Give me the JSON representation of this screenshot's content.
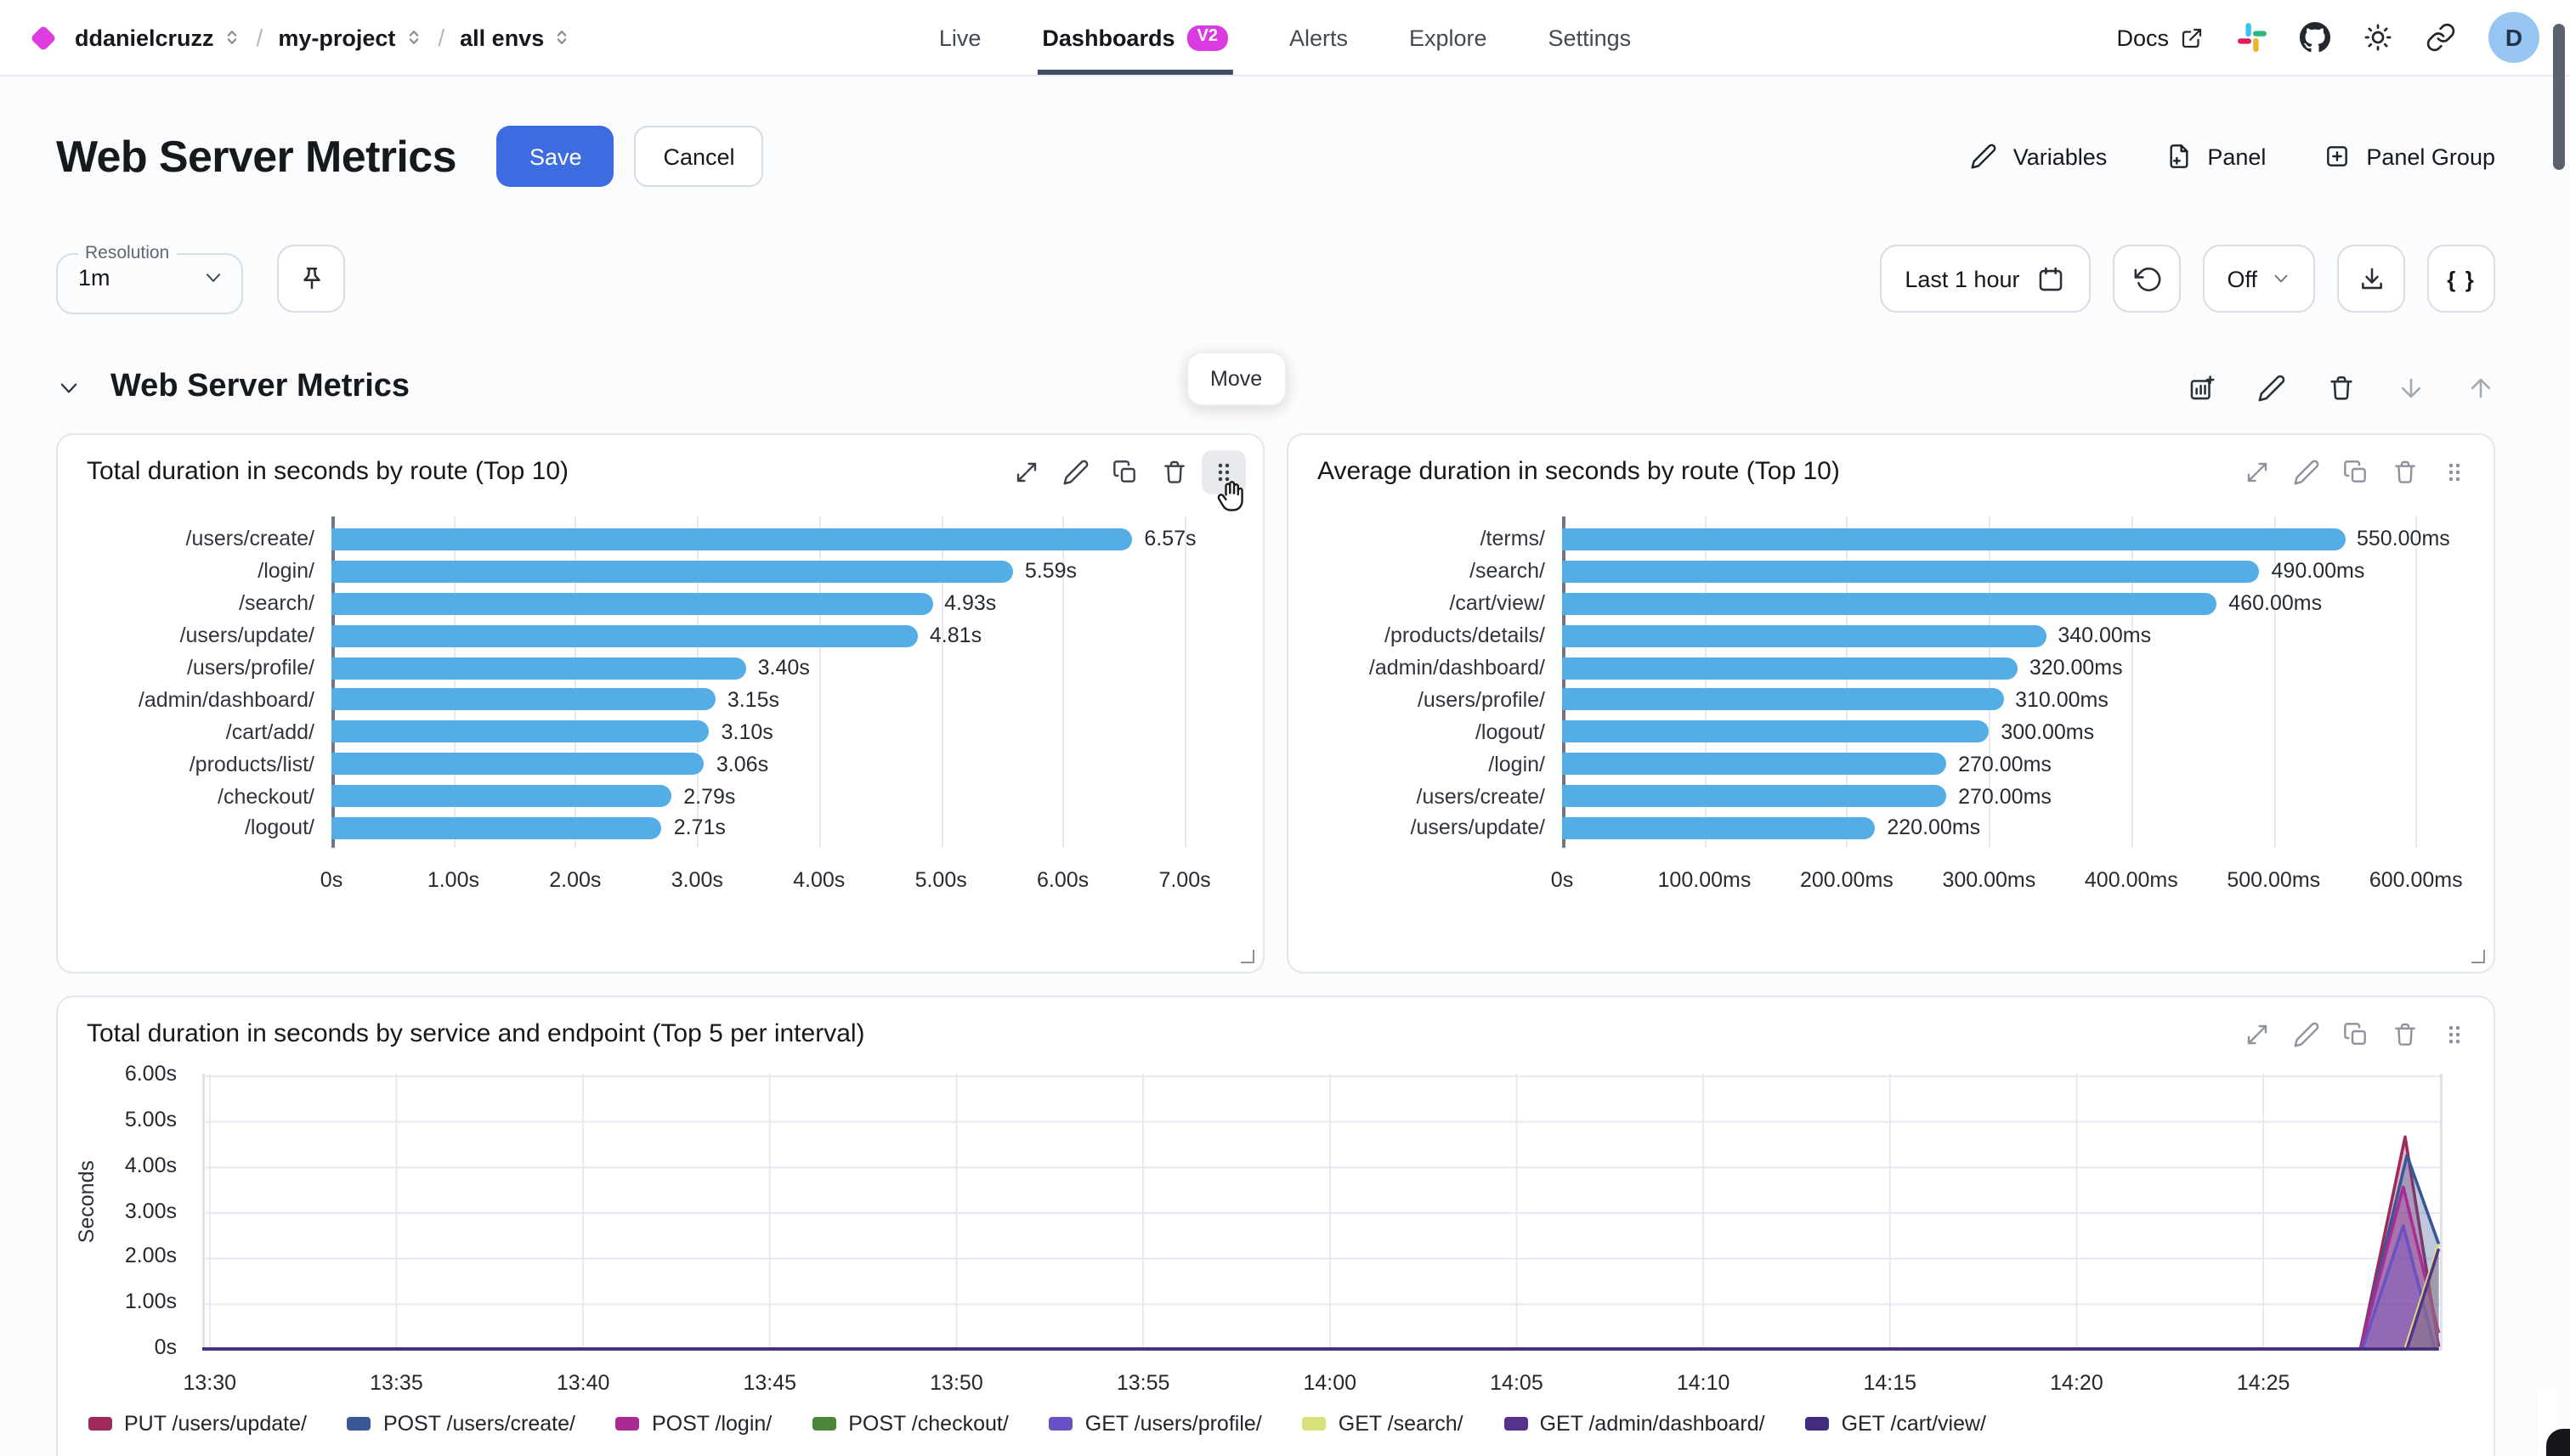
{
  "topbar": {
    "breadcrumb": {
      "org": "ddanielcruzz",
      "project": "my-project",
      "env": "all envs",
      "separator": "/"
    },
    "nav": [
      {
        "label": "Live",
        "active": false
      },
      {
        "label": "Dashboards",
        "active": true,
        "badge": "V2"
      },
      {
        "label": "Alerts",
        "active": false
      },
      {
        "label": "Explore",
        "active": false
      },
      {
        "label": "Settings",
        "active": false
      }
    ],
    "docs_label": "Docs",
    "avatar_initial": "D"
  },
  "header": {
    "title": "Web Server Metrics",
    "save_label": "Save",
    "cancel_label": "Cancel",
    "variables_label": "Variables",
    "panel_label": "Panel",
    "panel_group_label": "Panel Group"
  },
  "toolbar": {
    "resolution_label": "Resolution",
    "resolution_value": "1m",
    "time_range": "Last 1 hour",
    "refresh_interval": "Off",
    "braces_label": "{ }"
  },
  "section": {
    "title": "Web Server Metrics",
    "move_tooltip": "Move"
  },
  "colors": {
    "accent_blue": "#3d6be0",
    "badge_magenta": "#d93be0",
    "brand_magenta": "#df3ddf",
    "bar_blue": "#55ade6",
    "avatar_bg": "#96c5f2",
    "active_tab_underline": "#3f4f63"
  },
  "chart_data": [
    {
      "type": "bar",
      "orientation": "horizontal",
      "title": "Total duration in seconds by route (Top 10)",
      "unit": "s",
      "categories": [
        "/users/create/",
        "/login/",
        "/search/",
        "/users/update/",
        "/users/profile/",
        "/admin/dashboard/",
        "/cart/add/",
        "/products/list/",
        "/checkout/",
        "/logout/"
      ],
      "values": [
        6.57,
        5.59,
        4.93,
        4.81,
        3.4,
        3.15,
        3.1,
        3.06,
        2.79,
        2.71
      ],
      "value_labels": [
        "6.57s",
        "5.59s",
        "4.93s",
        "4.81s",
        "3.40s",
        "3.15s",
        "3.10s",
        "3.06s",
        "2.79s",
        "2.71s"
      ],
      "xlim": [
        0,
        7.39
      ],
      "xticks": [
        {
          "v": 0,
          "label": "0s"
        },
        {
          "v": 1,
          "label": "1.00s"
        },
        {
          "v": 2,
          "label": "2.00s"
        },
        {
          "v": 3,
          "label": "3.00s"
        },
        {
          "v": 4,
          "label": "4.00s"
        },
        {
          "v": 5,
          "label": "5.00s"
        },
        {
          "v": 6,
          "label": "6.00s"
        },
        {
          "v": 7,
          "label": "7.00s"
        }
      ],
      "bar_color": "#55ade6",
      "grid": true
    },
    {
      "type": "bar",
      "orientation": "horizontal",
      "title": "Average duration in seconds by route (Top 10)",
      "unit": "ms",
      "categories": [
        "/terms/",
        "/search/",
        "/cart/view/",
        "/products/details/",
        "/admin/dashboard/",
        "/users/profile/",
        "/logout/",
        "/login/",
        "/users/create/",
        "/users/update/"
      ],
      "values": [
        550,
        490,
        460,
        340,
        320,
        310,
        300,
        270,
        270,
        220
      ],
      "value_labels": [
        "550.00ms",
        "490.00ms",
        "460.00ms",
        "340.00ms",
        "320.00ms",
        "310.00ms",
        "300.00ms",
        "270.00ms",
        "270.00ms",
        "220.00ms"
      ],
      "xlim": [
        0,
        633
      ],
      "xticks": [
        {
          "v": 0,
          "label": "0s"
        },
        {
          "v": 100,
          "label": "100.00ms"
        },
        {
          "v": 200,
          "label": "200.00ms"
        },
        {
          "v": 300,
          "label": "300.00ms"
        },
        {
          "v": 400,
          "label": "400.00ms"
        },
        {
          "v": 500,
          "label": "500.00ms"
        },
        {
          "v": 600,
          "label": "600.00ms"
        }
      ],
      "bar_color": "#55ade6",
      "grid": true
    },
    {
      "type": "area",
      "title": "Total duration in seconds by service and endpoint (Top 5 per interval)",
      "ylabel": "Seconds",
      "ylim": [
        0,
        6
      ],
      "yticks": [
        {
          "v": 0,
          "label": "0s"
        },
        {
          "v": 1,
          "label": "1.00s"
        },
        {
          "v": 2,
          "label": "2.00s"
        },
        {
          "v": 3,
          "label": "3.00s"
        },
        {
          "v": 4,
          "label": "4.00s"
        },
        {
          "v": 5,
          "label": "5.00s"
        },
        {
          "v": 6,
          "label": "6.00s"
        }
      ],
      "x_minutes_range": [
        29.8,
        89.8
      ],
      "xticks": [
        {
          "t": 30,
          "label": "13:30"
        },
        {
          "t": 35,
          "label": "13:35"
        },
        {
          "t": 40,
          "label": "13:40"
        },
        {
          "t": 45,
          "label": "13:45"
        },
        {
          "t": 50,
          "label": "13:50"
        },
        {
          "t": 55,
          "label": "13:55"
        },
        {
          "t": 60,
          "label": "14:00"
        },
        {
          "t": 65,
          "label": "14:05"
        },
        {
          "t": 70,
          "label": "14:10"
        },
        {
          "t": 75,
          "label": "14:15"
        },
        {
          "t": 80,
          "label": "14:20"
        },
        {
          "t": 85,
          "label": "14:25"
        }
      ],
      "legend_position": "bottom",
      "grid": true,
      "series": [
        {
          "name": "PUT /users/update/",
          "color": "#9f2b5b",
          "points": [
            [
              29.8,
              0
            ],
            [
              87.6,
              0
            ],
            [
              88.8,
              4.65
            ],
            [
              89.7,
              0.05
            ]
          ]
        },
        {
          "name": "POST /users/create/",
          "color": "#3a5795",
          "points": [
            [
              29.8,
              0
            ],
            [
              87.6,
              0
            ],
            [
              88.85,
              4.25
            ],
            [
              89.7,
              2.3
            ]
          ]
        },
        {
          "name": "POST /login/",
          "color": "#a82c94",
          "points": [
            [
              29.8,
              0
            ],
            [
              87.6,
              0
            ],
            [
              88.75,
              3.55
            ],
            [
              89.7,
              0.35
            ]
          ]
        },
        {
          "name": "POST /checkout/",
          "color": "#4a8638",
          "points": [
            [
              29.8,
              0
            ],
            [
              89.7,
              0
            ]
          ]
        },
        {
          "name": "GET /users/profile/",
          "color": "#6a51c4",
          "points": [
            [
              29.8,
              0
            ],
            [
              87.65,
              0
            ],
            [
              88.75,
              2.7
            ],
            [
              89.6,
              0
            ],
            [
              89.7,
              0
            ]
          ]
        },
        {
          "name": "GET /search/",
          "color": "#d9e07a",
          "points": [
            [
              29.8,
              0
            ],
            [
              88.8,
              0
            ],
            [
              89.7,
              2.3
            ]
          ]
        },
        {
          "name": "GET /admin/dashboard/",
          "color": "#54338d",
          "points": [
            [
              29.8,
              0
            ],
            [
              88.85,
              0
            ],
            [
              89.7,
              2.2
            ]
          ]
        },
        {
          "name": "GET /cart/view/",
          "color": "#432c7e",
          "points": [
            [
              29.8,
              0
            ],
            [
              89.7,
              0
            ]
          ]
        }
      ]
    }
  ]
}
